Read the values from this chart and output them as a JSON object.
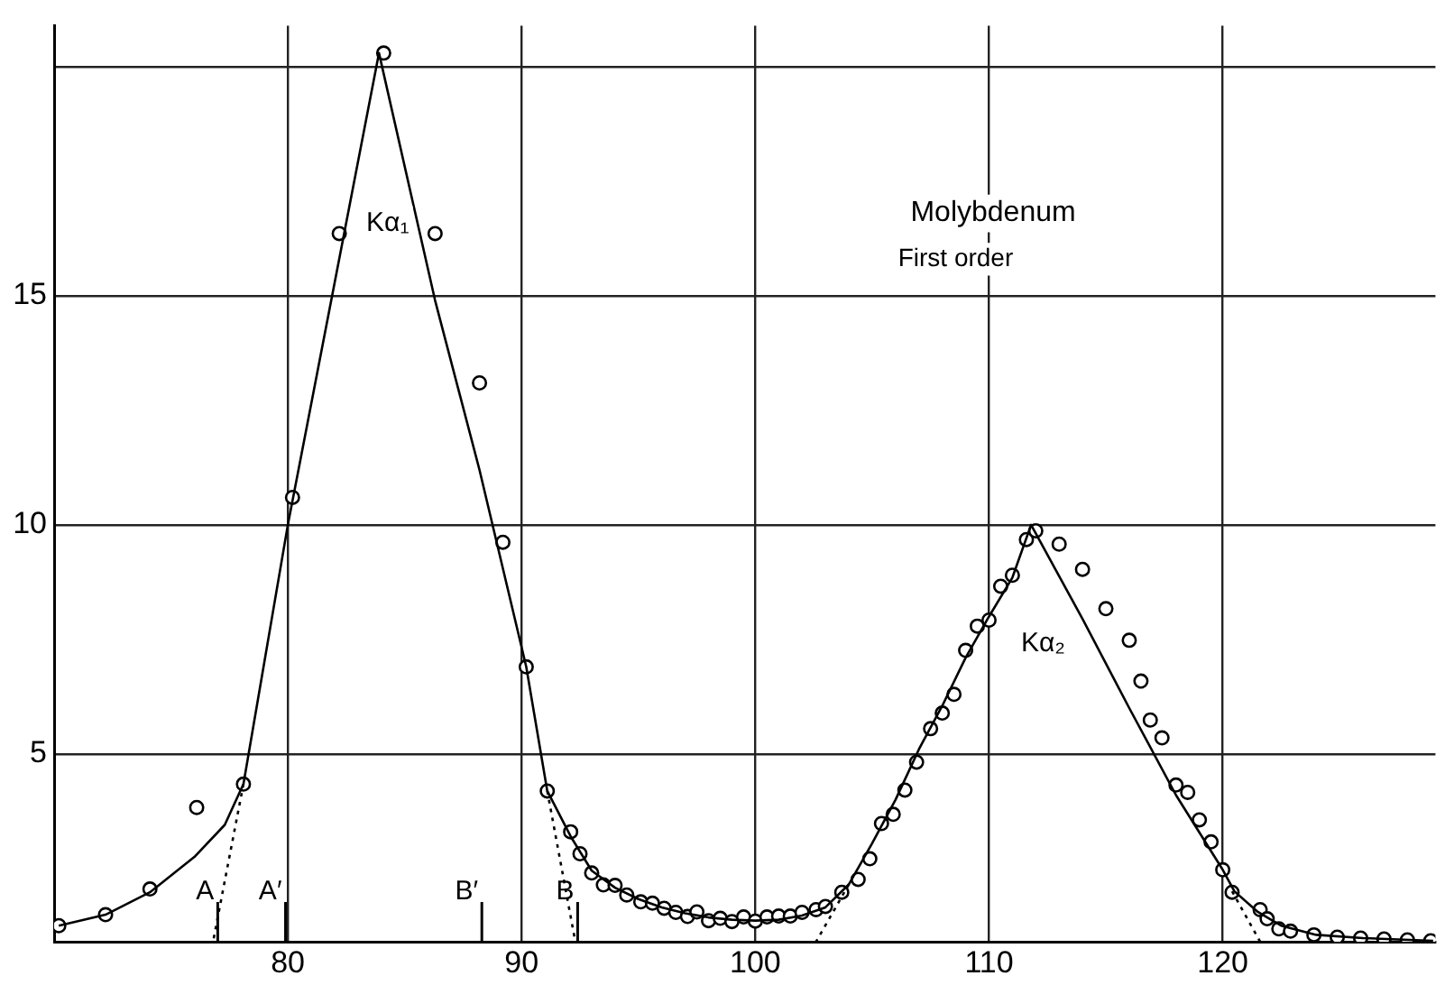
{
  "chart_data": {
    "type": "scatter",
    "xlim": [
      70,
      129.1
    ],
    "ylim": [
      0.9,
      20.9
    ],
    "xticks": [
      80,
      90,
      100,
      110,
      120
    ],
    "yticks": [
      5,
      10,
      15,
      {
        "value": 20,
        "label": null
      }
    ],
    "grid": true,
    "legend": false,
    "series": [
      {
        "type": "line",
        "color": "#000000",
        "marker": "none",
        "line_style": "solid",
        "x": [
          70.2,
          72.2,
          74.1,
          76.0,
          77.3,
          78.1,
          80.0,
          83.9,
          86.3,
          88.2,
          90.2,
          91.1,
          92.1,
          93.0,
          94.0,
          95.0,
          96.0,
          97.0,
          98.0,
          99.0,
          100.0,
          101.0,
          102.0,
          103.0,
          104.0,
          105.0,
          106.0,
          107.0,
          108.0,
          109.0,
          110.0,
          111.0,
          111.8,
          114.0,
          116.0,
          118.0,
          120.0,
          120.5,
          121.5,
          122.5,
          124.0,
          126.0,
          129.0
        ],
        "values": [
          1.25,
          1.49,
          1.98,
          2.75,
          3.45,
          4.34,
          10.0,
          20.3,
          14.9,
          11.2,
          6.9,
          4.19,
          3.2,
          2.45,
          2.08,
          1.83,
          1.65,
          1.52,
          1.43,
          1.38,
          1.36,
          1.38,
          1.47,
          1.65,
          2.15,
          3.05,
          4.0,
          5.1,
          6.05,
          7.1,
          8.0,
          8.85,
          10.0,
          7.95,
          6.0,
          4.1,
          2.47,
          2.0,
          1.55,
          1.25,
          1.05,
          0.98,
          0.92
        ]
      },
      {
        "type": "line",
        "color": "#000000",
        "marker": "none",
        "line_style": "dotted",
        "x": [
          78.1,
          76.8
        ],
        "values": [
          4.34,
          0.9
        ]
      },
      {
        "type": "line",
        "color": "#000000",
        "marker": "none",
        "line_style": "dotted",
        "x": [
          91.1,
          92.3
        ],
        "values": [
          4.19,
          0.9
        ]
      },
      {
        "type": "line",
        "color": "#000000",
        "marker": "none",
        "line_style": "dotted",
        "x": [
          104.0,
          102.6
        ],
        "values": [
          2.15,
          0.9
        ]
      },
      {
        "type": "line",
        "color": "#000000",
        "marker": "none",
        "line_style": "dotted",
        "x": [
          120.4,
          121.6
        ],
        "values": [
          2.0,
          0.9
        ]
      },
      {
        "type": "scatter",
        "color": "#000000",
        "marker": "circle",
        "x": [
          70.2,
          72.2,
          74.1,
          76.1,
          78.1,
          80.2,
          82.2,
          84.1,
          86.3,
          88.2,
          89.2,
          90.2,
          91.1,
          92.1,
          92.5,
          93.0,
          93.5,
          94.0,
          94.5,
          95.1,
          95.6,
          96.1,
          96.6,
          97.1,
          97.5,
          98.0,
          98.5,
          99.0,
          99.5,
          100.0,
          100.5,
          101.0,
          101.5,
          102.0,
          102.6,
          103.0,
          103.7,
          104.4,
          104.9,
          105.4,
          105.9,
          106.4,
          106.9,
          107.5,
          108.0,
          108.5,
          109.0,
          109.5,
          110.0,
          110.5,
          111.0,
          111.6,
          112.0,
          113.0,
          114.0,
          115.0,
          116.0,
          116.5,
          116.9,
          117.4,
          118.0,
          118.5,
          119.0,
          119.5,
          120.0,
          120.4,
          121.6,
          121.9,
          122.4,
          122.9,
          123.9,
          124.9,
          125.9,
          126.9,
          127.9,
          128.9
        ],
        "values": [
          1.25,
          1.49,
          2.05,
          3.83,
          4.34,
          10.6,
          16.36,
          20.3,
          16.36,
          13.1,
          9.62,
          6.9,
          4.19,
          3.3,
          2.82,
          2.4,
          2.14,
          2.13,
          1.92,
          1.77,
          1.74,
          1.63,
          1.54,
          1.45,
          1.55,
          1.36,
          1.41,
          1.34,
          1.44,
          1.35,
          1.44,
          1.46,
          1.46,
          1.54,
          1.6,
          1.67,
          1.98,
          2.26,
          2.71,
          3.48,
          3.68,
          4.21,
          4.82,
          5.55,
          5.89,
          6.3,
          7.26,
          7.79,
          7.92,
          8.66,
          8.9,
          9.68,
          9.87,
          9.58,
          9.03,
          8.17,
          7.48,
          6.59,
          5.74,
          5.35,
          4.32,
          4.16,
          3.56,
          3.08,
          2.47,
          1.98,
          1.6,
          1.4,
          1.18,
          1.13,
          1.05,
          1.0,
          0.98,
          0.96,
          0.94,
          0.92
        ]
      }
    ],
    "ref_lines": [
      {
        "axis": "x",
        "value": 77.0,
        "label": "A"
      },
      {
        "axis": "x",
        "value": 79.9,
        "label": "A′"
      },
      {
        "axis": "x",
        "value": 88.3,
        "label": "B′"
      },
      {
        "axis": "x",
        "value": 92.4,
        "label": "B"
      }
    ],
    "annotations": [
      "Kα₁",
      "Kα₂",
      "Molybdenum",
      "First order"
    ]
  }
}
